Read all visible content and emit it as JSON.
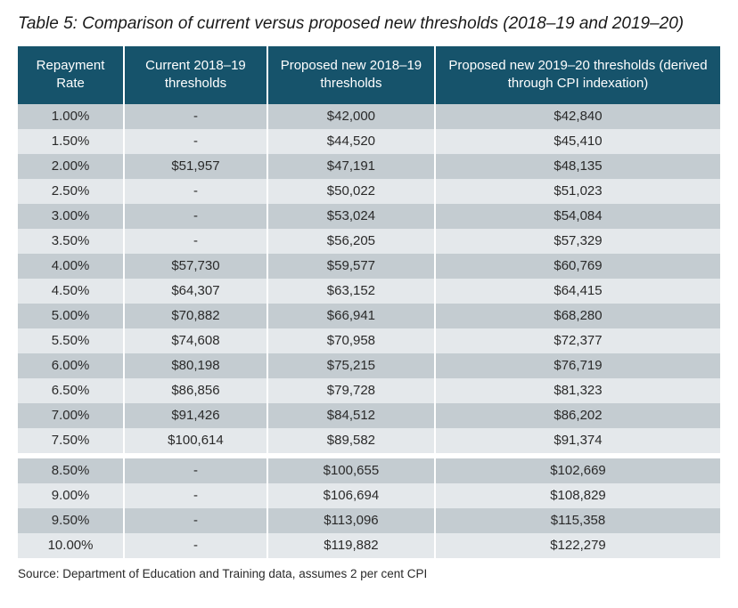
{
  "title": "Table 5: Comparison of current versus proposed new thresholds (2018–19 and 2019–20)",
  "source": "Source: Department of Education and Training data, assumes 2 per cent CPI",
  "table": {
    "type": "table",
    "header_bg": "#16536b",
    "header_color": "#ffffff",
    "row_odd_bg": "#c4ccd1",
    "row_even_bg": "#e4e8eb",
    "columns": [
      "Repayment Rate",
      "Current 2018–19 thresholds",
      "Proposed new 2018–19 thresholds",
      "Proposed new 2019–20 thresholds (derived through CPI indexation)"
    ],
    "rows": [
      [
        "1.00%",
        "-",
        "$42,000",
        "$42,840"
      ],
      [
        "1.50%",
        "-",
        "$44,520",
        "$45,410"
      ],
      [
        "2.00%",
        "$51,957",
        "$47,191",
        "$48,135"
      ],
      [
        "2.50%",
        "-",
        "$50,022",
        "$51,023"
      ],
      [
        "3.00%",
        "-",
        "$53,024",
        "$54,084"
      ],
      [
        "3.50%",
        "-",
        "$56,205",
        "$57,329"
      ],
      [
        "4.00%",
        "$57,730",
        "$59,577",
        "$60,769"
      ],
      [
        "4.50%",
        "$64,307",
        "$63,152",
        "$64,415"
      ],
      [
        "5.00%",
        "$70,882",
        "$66,941",
        "$68,280"
      ],
      [
        "5.50%",
        "$74,608",
        "$70,958",
        "$72,377"
      ],
      [
        "6.00%",
        "$80,198",
        "$75,215",
        "$76,719"
      ],
      [
        "6.50%",
        "$86,856",
        "$79,728",
        "$81,323"
      ],
      [
        "7.00%",
        "$91,426",
        "$84,512",
        "$86,202"
      ],
      [
        "7.50%",
        "$100,614",
        "$89,582",
        "$91,374"
      ],
      [
        "8.50%",
        "-",
        "$100,655",
        "$102,669"
      ],
      [
        "9.00%",
        "-",
        "$106,694",
        "$108,829"
      ],
      [
        "9.50%",
        "-",
        "$113,096",
        "$115,358"
      ],
      [
        "10.00%",
        "-",
        "$119,882",
        "$122,279"
      ]
    ],
    "gap_after_index": 13
  }
}
